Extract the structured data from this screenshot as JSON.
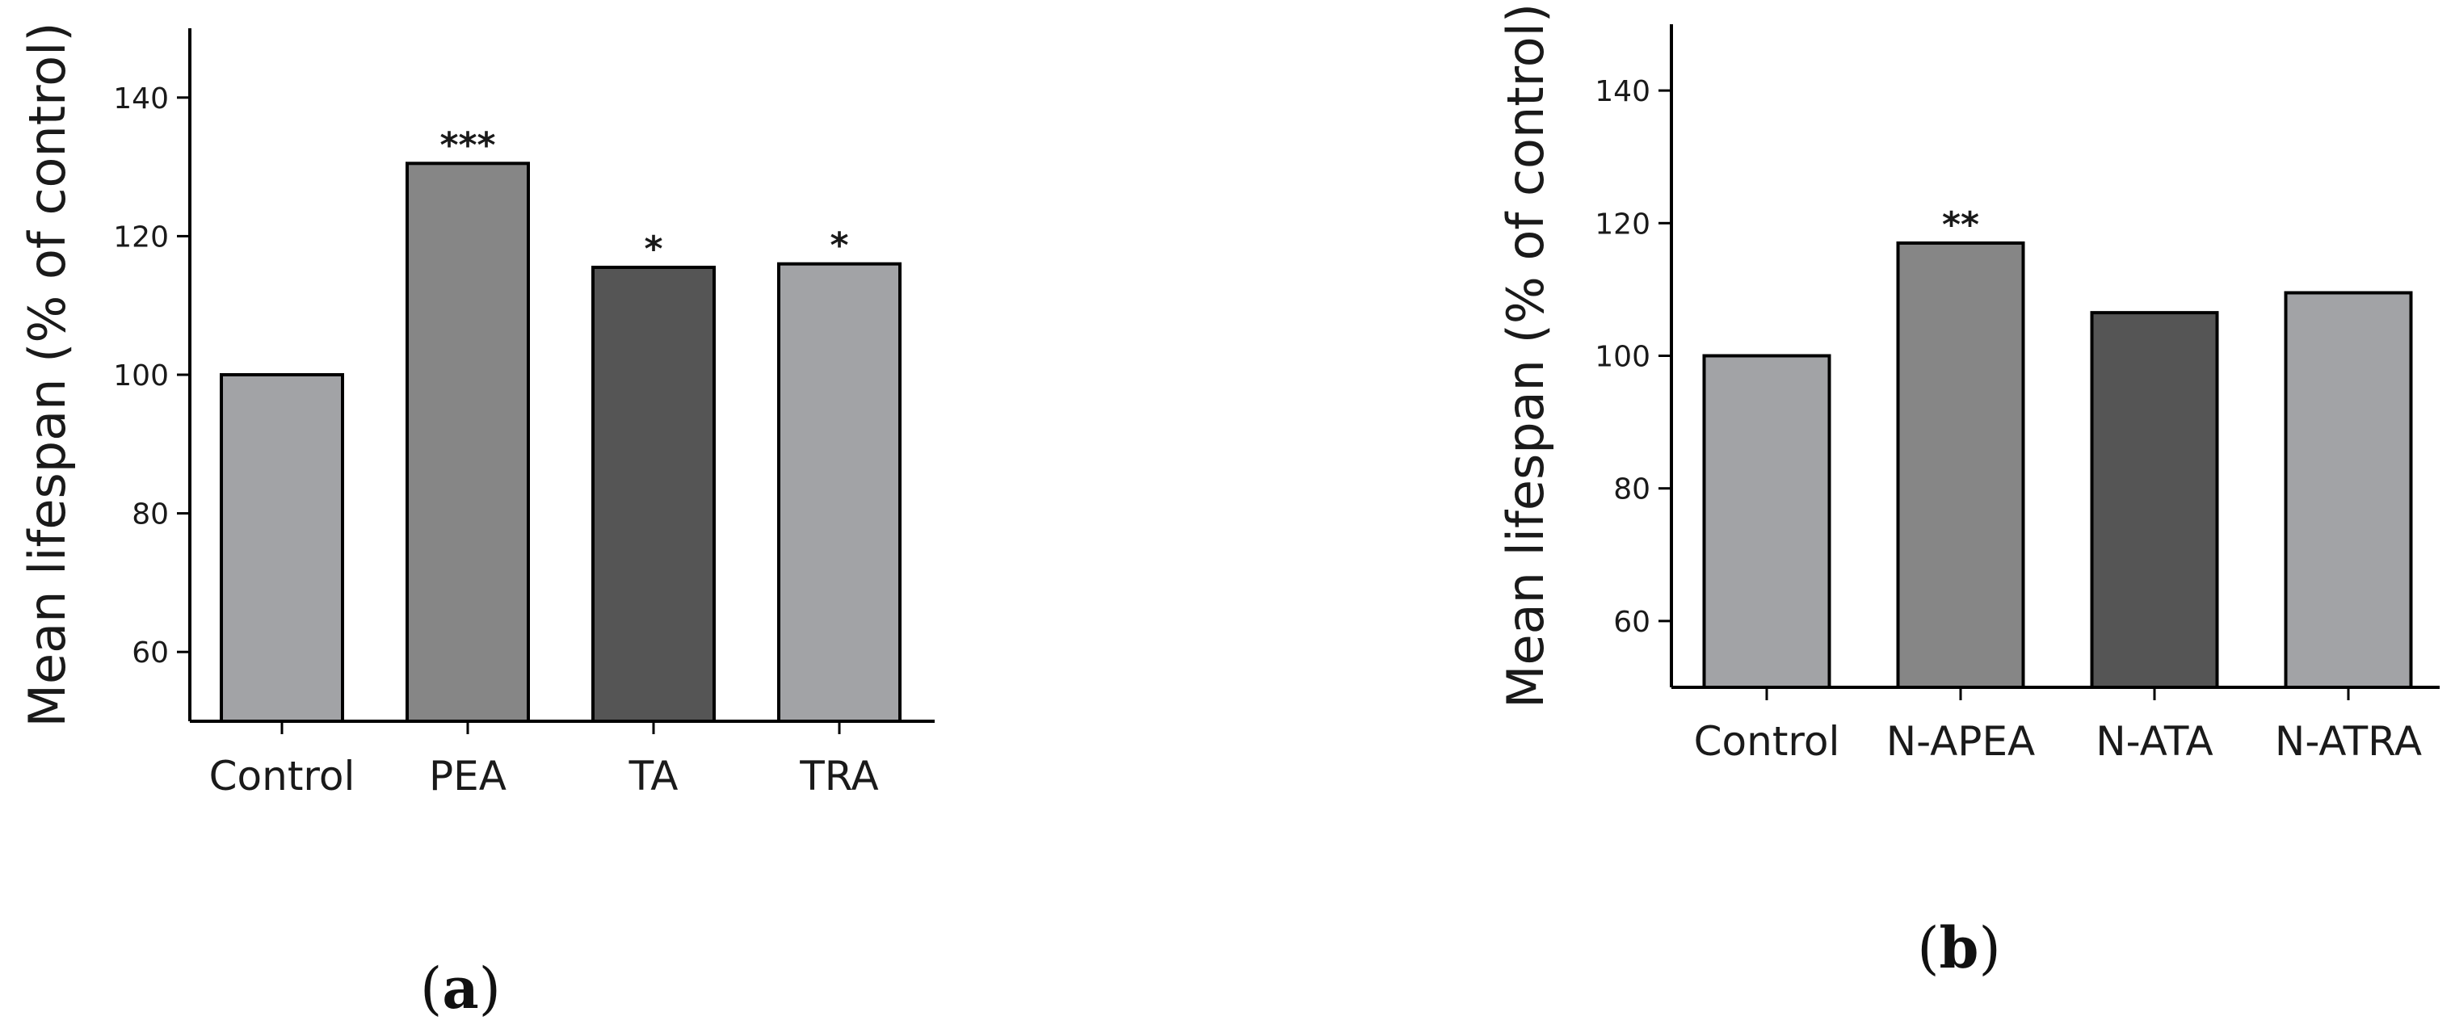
{
  "chart_data": [
    {
      "type": "bar",
      "panel": "(a)",
      "panel_letter": "a",
      "ylabel": "Mean lifespan (% of control)",
      "ylim": [
        50,
        150
      ],
      "yticks": [
        60,
        80,
        100,
        120,
        140
      ],
      "categories": [
        "Control",
        "PEA",
        "TA",
        "TRA"
      ],
      "values": [
        100,
        130.5,
        115.5,
        116
      ],
      "significance": [
        "",
        "***",
        "*",
        "*"
      ],
      "bar_colors": [
        "#a2a3a6",
        "#868686",
        "#555555",
        "#a2a3a6"
      ],
      "grid": false,
      "legend": "none"
    },
    {
      "type": "bar",
      "panel": "(b)",
      "panel_letter": "b",
      "ylabel": "Mean lifespan (% of control)",
      "ylim": [
        50,
        150
      ],
      "yticks": [
        60,
        80,
        100,
        120,
        140
      ],
      "categories": [
        "Control",
        "N-APEA",
        "N-ATA",
        "N-ATRA"
      ],
      "values": [
        100,
        117,
        106.5,
        109.5
      ],
      "significance": [
        "",
        "**",
        "",
        ""
      ],
      "bar_colors": [
        "#a2a3a6",
        "#868686",
        "#555555",
        "#a2a3a6"
      ],
      "grid": false,
      "legend": "none"
    }
  ]
}
